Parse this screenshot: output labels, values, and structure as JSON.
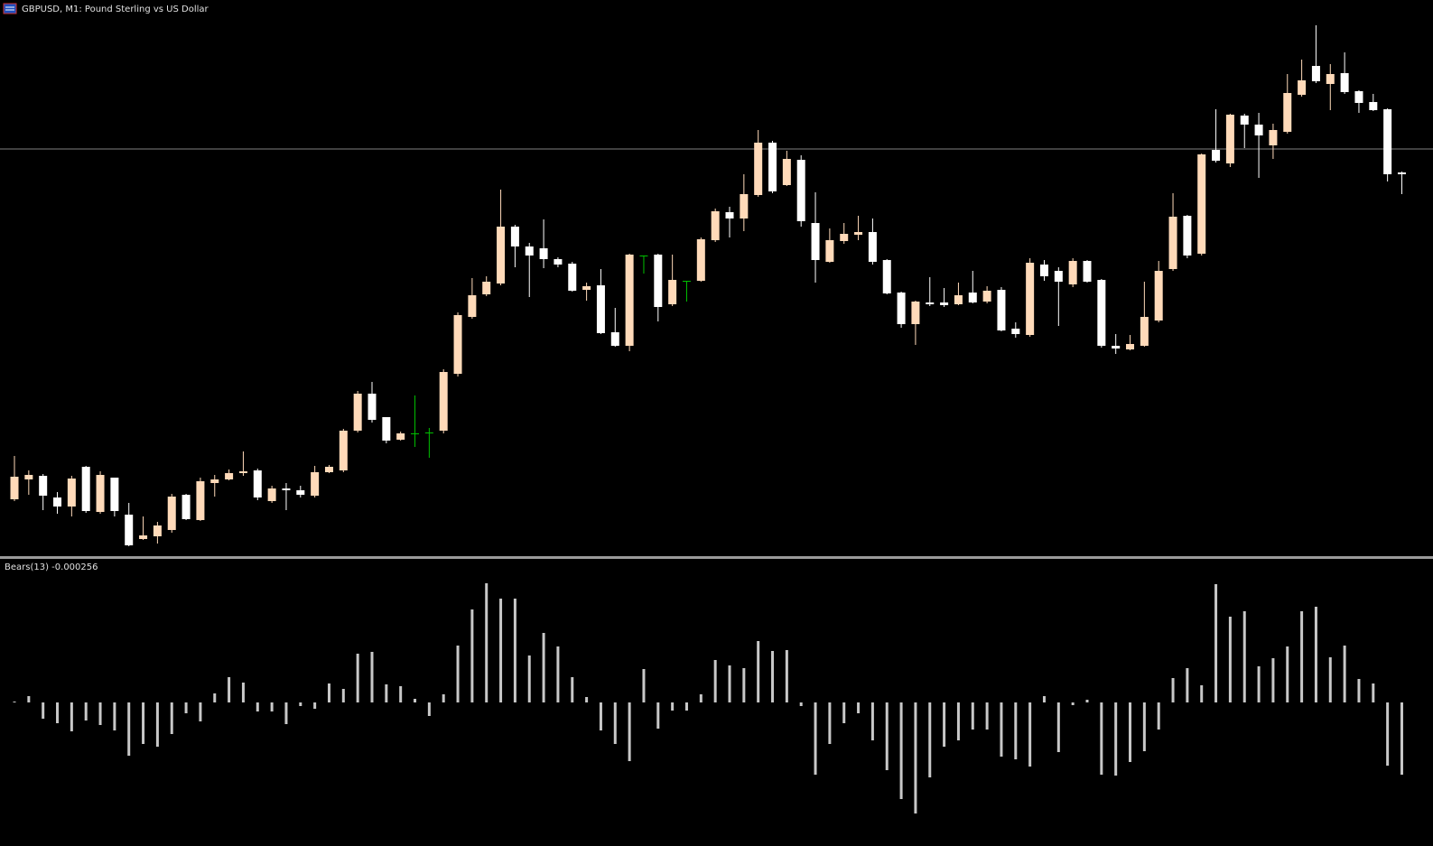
{
  "chart_data": [
    {
      "type": "candlestick",
      "title": "GBPUSD, M1:  Pound Sterling vs US Dollar",
      "open": [
        67,
        89,
        93,
        69,
        59,
        103,
        53,
        91,
        50,
        23,
        26,
        33,
        72,
        44,
        85,
        89,
        96,
        99,
        65,
        79,
        77,
        71,
        97,
        99,
        143,
        184,
        158,
        133,
        140,
        141,
        143,
        206,
        269,
        294,
        306,
        369,
        347,
        345,
        333,
        328,
        299,
        304,
        252,
        237,
        337,
        338,
        283,
        309,
        309,
        354,
        385,
        378,
        404,
        462,
        415,
        443,
        373,
        330,
        353,
        360,
        363,
        332,
        296,
        261,
        285,
        285,
        283,
        296,
        286,
        299,
        256,
        249,
        327,
        320,
        305,
        331,
        310,
        237,
        233,
        237,
        265,
        322,
        381,
        339,
        454,
        439,
        492,
        482,
        459,
        474,
        515,
        547,
        527,
        539,
        519,
        507,
        499,
        429
      ],
      "high": [
        115,
        99,
        95,
        75,
        93,
        104,
        98,
        91,
        63,
        48,
        42,
        73,
        73,
        91,
        94,
        100,
        120,
        101,
        82,
        85,
        82,
        104,
        105,
        145,
        187,
        197,
        158,
        142,
        182,
        146,
        211,
        274,
        312,
        314,
        410,
        371,
        351,
        377,
        335,
        330,
        307,
        322,
        279,
        339,
        337,
        339,
        338,
        309,
        357,
        389,
        391,
        427,
        476,
        464,
        453,
        448,
        407,
        367,
        373,
        381,
        378,
        333,
        297,
        287,
        313,
        301,
        307,
        320,
        303,
        302,
        263,
        334,
        332,
        324,
        334,
        332,
        311,
        250,
        249,
        308,
        331,
        406,
        382,
        450,
        499,
        494,
        494,
        495,
        483,
        538,
        554,
        592,
        549,
        562,
        520,
        516,
        500,
        430
      ],
      "low": [
        65,
        72,
        55,
        51,
        48,
        52,
        51,
        48,
        15,
        22,
        18,
        30,
        44,
        43,
        70,
        88,
        93,
        66,
        63,
        55,
        69,
        69,
        96,
        97,
        141,
        152,
        129,
        132,
        125,
        113,
        140,
        203,
        267,
        292,
        304,
        324,
        291,
        323,
        324,
        297,
        287,
        250,
        236,
        231,
        317,
        264,
        281,
        286,
        308,
        352,
        357,
        364,
        402,
        406,
        414,
        369,
        307,
        329,
        350,
        354,
        327,
        294,
        257,
        238,
        281,
        280,
        282,
        284,
        284,
        253,
        246,
        247,
        309,
        259,
        302,
        307,
        235,
        228,
        232,
        236,
        263,
        320,
        334,
        337,
        440,
        435,
        456,
        423,
        444,
        472,
        513,
        528,
        498,
        516,
        495,
        497,
        419,
        405
      ],
      "close": [
        92,
        94,
        71,
        59,
        90,
        54,
        94,
        54,
        16,
        27,
        38,
        70,
        45,
        87,
        89,
        96,
        98,
        69,
        79,
        77,
        72,
        97,
        103,
        143,
        184,
        155,
        132,
        140,
        140,
        141,
        208,
        271,
        293,
        308,
        369,
        347,
        337,
        333,
        327,
        298,
        303,
        251,
        237,
        338,
        337,
        280,
        310,
        309,
        355,
        386,
        378,
        405,
        462,
        408,
        444,
        375,
        332,
        354,
        361,
        363,
        330,
        295,
        261,
        286,
        283,
        282,
        293,
        285,
        298,
        254,
        250,
        329,
        314,
        308,
        331,
        308,
        237,
        234,
        239,
        269,
        320,
        380,
        337,
        449,
        442,
        493,
        482,
        470,
        476,
        517,
        531,
        530,
        538,
        518,
        506,
        498,
        427,
        427
      ],
      "ylim": [
        0,
        620
      ],
      "price_line": 455,
      "price_line_color": "#808080",
      "bull_color": "#ffdab9",
      "bear_color": "#ffffff",
      "doji_color": "#00c000"
    },
    {
      "type": "bar",
      "title": "Bears(13) -0.000256",
      "color": "#c8c8c8",
      "ylim": [
        -140,
        140
      ],
      "values": [
        1,
        7,
        -18,
        -23,
        -32,
        -20,
        -25,
        -31,
        -59,
        -46,
        -49,
        -35,
        -12,
        -21,
        10,
        28,
        22,
        -10,
        -10,
        -24,
        -4,
        -7,
        21,
        15,
        54,
        56,
        20,
        18,
        4,
        -15,
        9,
        63,
        103,
        132,
        115,
        115,
        52,
        77,
        62,
        28,
        6,
        -31,
        -46,
        -65,
        37,
        -29,
        -9,
        -9,
        9,
        47,
        41,
        38,
        68,
        57,
        58,
        -4,
        -80,
        -46,
        -23,
        -12,
        -42,
        -75,
        -107,
        -123,
        -83,
        -49,
        -42,
        -30,
        -30,
        -60,
        -63,
        -71,
        7,
        -55,
        -3,
        3,
        -80,
        -81,
        -66,
        -54,
        -30,
        27,
        38,
        19,
        131,
        95,
        101,
        40,
        49,
        62,
        101,
        106,
        50,
        63,
        26,
        21,
        -70,
        -80
      ]
    }
  ]
}
